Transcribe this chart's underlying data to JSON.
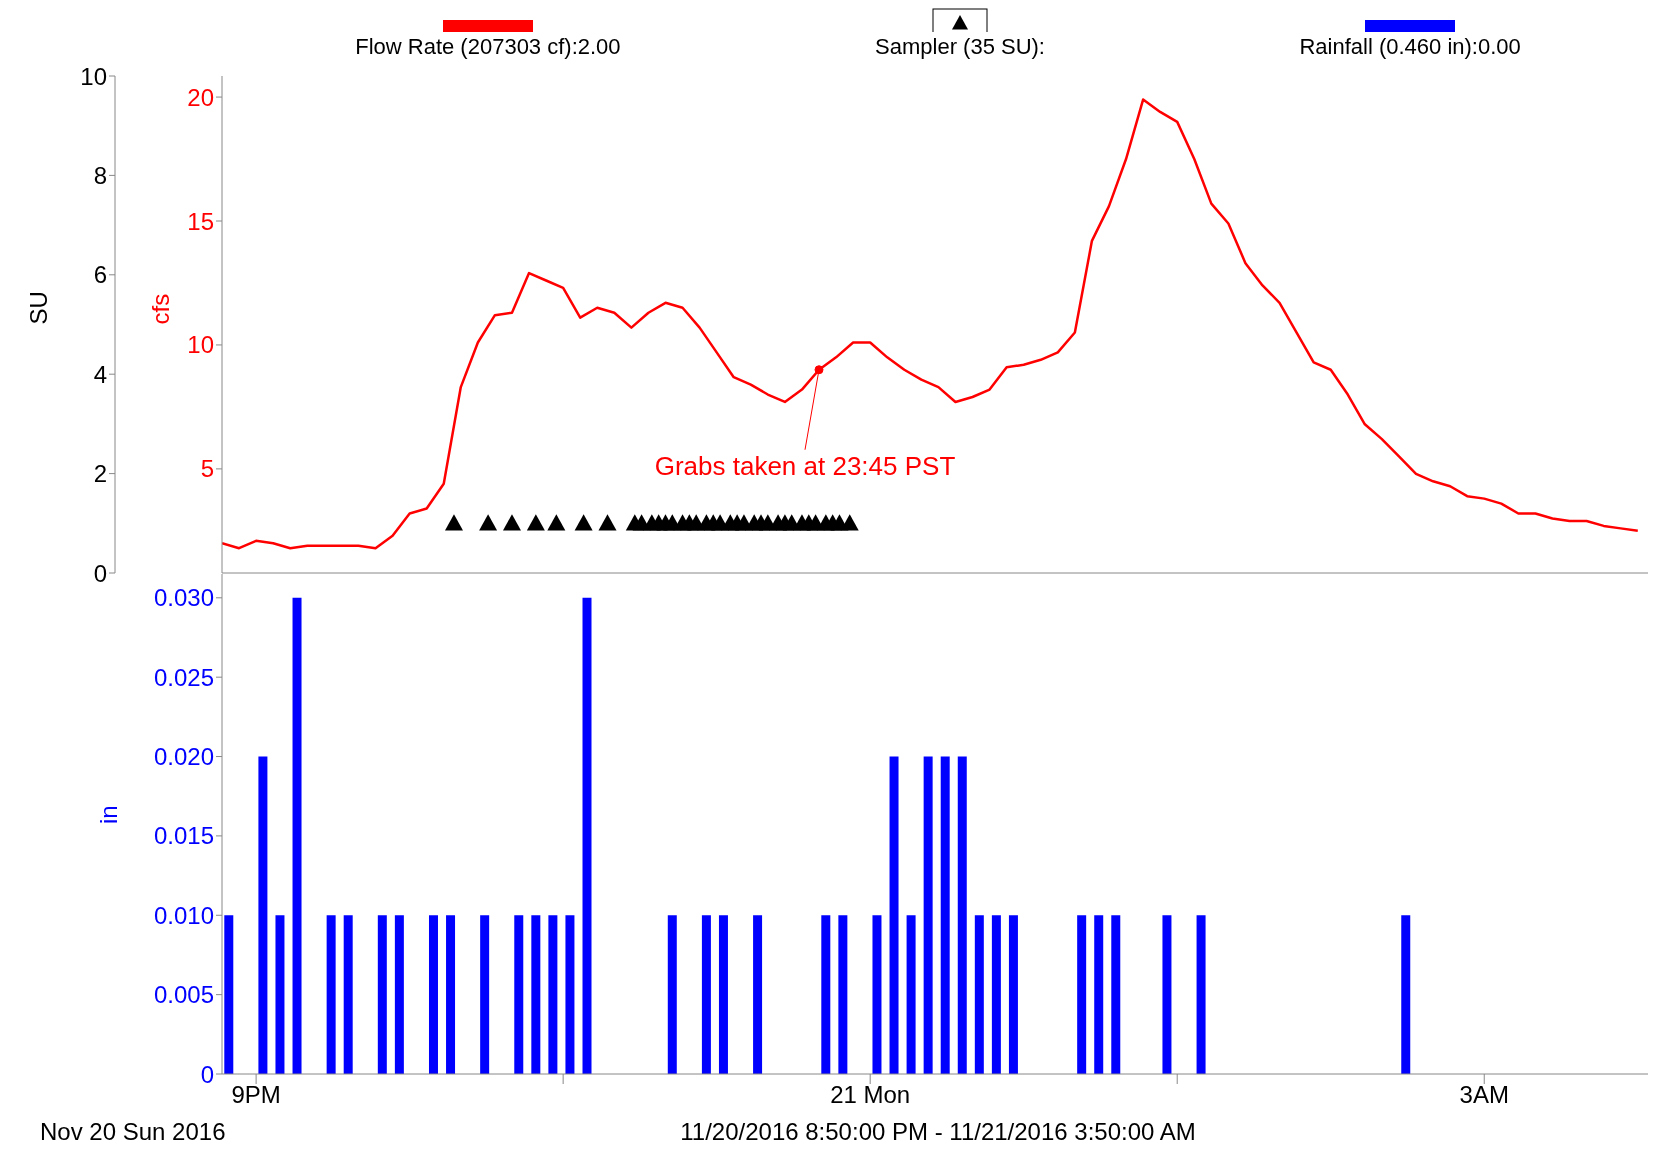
{
  "chart_data": [
    {
      "type": "line",
      "ylabel": "cfs",
      "y2label": "SU",
      "xlim": [
        "2016-11-20T20:50",
        "2016-11-21T03:48"
      ],
      "ylim": [
        0.8,
        20.85
      ],
      "yticks": [
        5,
        10,
        15,
        20
      ],
      "y2lim": [
        0,
        10
      ],
      "y2ticks": [
        0,
        2,
        4,
        6,
        8,
        10
      ],
      "tick_labels": "y",
      "legend": "top",
      "series": [
        {
          "type": "line",
          "name": "Flow Rate (207303 cf):2.00",
          "color": "#ff0000",
          "marker": "none",
          "x": [
            "2016-11-20T20:50",
            "2016-11-20T20:55",
            "2016-11-20T21:00",
            "2016-11-20T21:05",
            "2016-11-20T21:10",
            "2016-11-20T21:15",
            "2016-11-20T21:20",
            "2016-11-20T21:25",
            "2016-11-20T21:30",
            "2016-11-20T21:35",
            "2016-11-20T21:40",
            "2016-11-20T21:45",
            "2016-11-20T21:50",
            "2016-11-20T21:55",
            "2016-11-20T22:00",
            "2016-11-20T22:05",
            "2016-11-20T22:10",
            "2016-11-20T22:15",
            "2016-11-20T22:20",
            "2016-11-20T22:25",
            "2016-11-20T22:30",
            "2016-11-20T22:35",
            "2016-11-20T22:40",
            "2016-11-20T22:45",
            "2016-11-20T22:50",
            "2016-11-20T22:55",
            "2016-11-20T23:00",
            "2016-11-20T23:05",
            "2016-11-20T23:10",
            "2016-11-20T23:15",
            "2016-11-20T23:20",
            "2016-11-20T23:25",
            "2016-11-20T23:30",
            "2016-11-20T23:35",
            "2016-11-20T23:40",
            "2016-11-20T23:45",
            "2016-11-20T23:50",
            "2016-11-20T23:55",
            "2016-11-21T00:00",
            "2016-11-21T00:05",
            "2016-11-21T00:10",
            "2016-11-21T00:15",
            "2016-11-21T00:20",
            "2016-11-21T00:25",
            "2016-11-21T00:30",
            "2016-11-21T00:35",
            "2016-11-21T00:40",
            "2016-11-21T00:45",
            "2016-11-21T00:50",
            "2016-11-21T00:55",
            "2016-11-21T01:00",
            "2016-11-21T01:05",
            "2016-11-21T01:10",
            "2016-11-21T01:15",
            "2016-11-21T01:20",
            "2016-11-21T01:25",
            "2016-11-21T01:30",
            "2016-11-21T01:35",
            "2016-11-21T01:40",
            "2016-11-21T01:45",
            "2016-11-21T01:50",
            "2016-11-21T01:55",
            "2016-11-21T02:00",
            "2016-11-21T02:05",
            "2016-11-21T02:10",
            "2016-11-21T02:15",
            "2016-11-21T02:20",
            "2016-11-21T02:25",
            "2016-11-21T02:30",
            "2016-11-21T02:35",
            "2016-11-21T02:40",
            "2016-11-21T02:45",
            "2016-11-21T02:50",
            "2016-11-21T02:55",
            "2016-11-21T03:00",
            "2016-11-21T03:05",
            "2016-11-21T03:10",
            "2016-11-21T03:15",
            "2016-11-21T03:20",
            "2016-11-21T03:25",
            "2016-11-21T03:30",
            "2016-11-21T03:35",
            "2016-11-21T03:40",
            "2016-11-21T03:45"
          ],
          "values": [
            2.0,
            1.8,
            2.1,
            2.0,
            1.8,
            1.9,
            1.9,
            1.9,
            1.9,
            1.8,
            2.3,
            3.2,
            3.4,
            4.4,
            8.3,
            10.1,
            11.2,
            11.3,
            12.9,
            12.6,
            12.3,
            11.1,
            11.5,
            11.3,
            10.7,
            11.3,
            11.7,
            11.5,
            10.7,
            9.7,
            8.7,
            8.4,
            8.0,
            7.7,
            8.2,
            9.0,
            9.5,
            10.1,
            10.1,
            9.5,
            9.0,
            8.6,
            8.3,
            7.7,
            7.9,
            8.2,
            9.1,
            9.2,
            9.4,
            9.7,
            10.5,
            14.2,
            15.6,
            17.5,
            19.9,
            19.4,
            19.0,
            17.5,
            15.7,
            14.9,
            13.3,
            12.4,
            11.7,
            10.5,
            9.3,
            9.0,
            8.0,
            6.8,
            6.2,
            5.5,
            4.8,
            4.5,
            4.3,
            3.9,
            3.8,
            3.6,
            3.2,
            3.2,
            3.0,
            2.9,
            2.9,
            2.7,
            2.6,
            2.5
          ]
        },
        {
          "type": "scatter",
          "name": "Sampler (35 SU):",
          "color": "#000000",
          "marker": "triangle",
          "axis": "y2",
          "x": [
            "2016-11-20T21:58",
            "2016-11-20T22:08",
            "2016-11-20T22:15",
            "2016-11-20T22:22",
            "2016-11-20T22:28",
            "2016-11-20T22:36",
            "2016-11-20T22:43",
            "2016-11-20T22:51",
            "2016-11-20T22:53",
            "2016-11-20T22:56",
            "2016-11-20T22:58",
            "2016-11-20T23:00",
            "2016-11-20T23:02",
            "2016-11-20T23:05",
            "2016-11-20T23:07",
            "2016-11-20T23:09",
            "2016-11-20T23:12",
            "2016-11-20T23:14",
            "2016-11-20T23:16",
            "2016-11-20T23:19",
            "2016-11-20T23:21",
            "2016-11-20T23:23",
            "2016-11-20T23:26",
            "2016-11-20T23:28",
            "2016-11-20T23:30",
            "2016-11-20T23:33",
            "2016-11-20T23:35",
            "2016-11-20T23:37",
            "2016-11-20T23:40",
            "2016-11-20T23:42",
            "2016-11-20T23:44",
            "2016-11-20T23:47",
            "2016-11-20T23:49",
            "2016-11-20T23:51",
            "2016-11-20T23:54"
          ],
          "values": [
            1,
            1,
            1,
            1,
            1,
            1,
            1,
            1,
            1,
            1,
            1,
            1,
            1,
            1,
            1,
            1,
            1,
            1,
            1,
            1,
            1,
            1,
            1,
            1,
            1,
            1,
            1,
            1,
            1,
            1,
            1,
            1,
            1,
            1,
            1
          ]
        }
      ],
      "annotations": [
        {
          "text": "Grabs taken at 23:45 PST",
          "x": "2016-11-20T23:45",
          "y": 9.0
        }
      ]
    },
    {
      "type": "bar",
      "ylabel": "in",
      "xlabel": "11/20/2016 8:50:00 PM - 11/21/2016 3:50:00 AM",
      "xlim": [
        "2016-11-20T20:50",
        "2016-11-21T03:48"
      ],
      "xticks": [
        {
          "value": "2016-11-20T21:00",
          "label": "9PM"
        },
        {
          "value": "2016-11-20T22:30",
          "label": null
        },
        {
          "value": "2016-11-21T00:00",
          "label": "21 Mon"
        },
        {
          "value": "2016-11-21T01:30",
          "label": null
        },
        {
          "value": "2016-11-21T03:00",
          "label": "3AM"
        }
      ],
      "ylim": [
        0,
        0.0315
      ],
      "yticks": [
        0,
        {
          "value": 0.005,
          "label": "0.005"
        },
        {
          "value": 0.01,
          "label": "0.010"
        },
        {
          "value": 0.015,
          "label": "0.015"
        },
        {
          "value": 0.02,
          "label": "0.020"
        },
        {
          "value": 0.025,
          "label": "0.025"
        },
        {
          "value": 0.03,
          "label": "0.030"
        }
      ],
      "legend": "top",
      "series": [
        {
          "name": "Rainfall (0.460 in):0.00",
          "color": "#0000ff",
          "x": [
            "2016-11-20T20:52",
            "2016-11-20T21:02",
            "2016-11-20T21:07",
            "2016-11-20T21:12",
            "2016-11-20T21:22",
            "2016-11-20T21:27",
            "2016-11-20T21:37",
            "2016-11-20T21:42",
            "2016-11-20T21:52",
            "2016-11-20T21:57",
            "2016-11-20T22:07",
            "2016-11-20T22:17",
            "2016-11-20T22:22",
            "2016-11-20T22:27",
            "2016-11-20T22:32",
            "2016-11-20T22:37",
            "2016-11-20T23:02",
            "2016-11-20T23:12",
            "2016-11-20T23:17",
            "2016-11-20T23:27",
            "2016-11-20T23:47",
            "2016-11-20T23:52",
            "2016-11-21T00:02",
            "2016-11-21T00:07",
            "2016-11-21T00:12",
            "2016-11-21T00:17",
            "2016-11-21T00:22",
            "2016-11-21T00:27",
            "2016-11-21T00:32",
            "2016-11-21T00:37",
            "2016-11-21T00:42",
            "2016-11-21T01:02",
            "2016-11-21T01:07",
            "2016-11-21T01:12",
            "2016-11-21T01:27",
            "2016-11-21T01:37",
            "2016-11-21T02:37"
          ],
          "values": [
            0.01,
            0.02,
            0.01,
            0.03,
            0.01,
            0.01,
            0.01,
            0.01,
            0.01,
            0.01,
            0.01,
            0.01,
            0.01,
            0.01,
            0.01,
            0.03,
            0.01,
            0.01,
            0.01,
            0.01,
            0.01,
            0.01,
            0.01,
            0.02,
            0.01,
            0.02,
            0.02,
            0.02,
            0.01,
            0.01,
            0.01,
            0.01,
            0.01,
            0.01,
            0.01,
            0.01,
            0.01
          ]
        }
      ],
      "annotations": [
        "Nov 20 Sun 2016"
      ]
    }
  ]
}
